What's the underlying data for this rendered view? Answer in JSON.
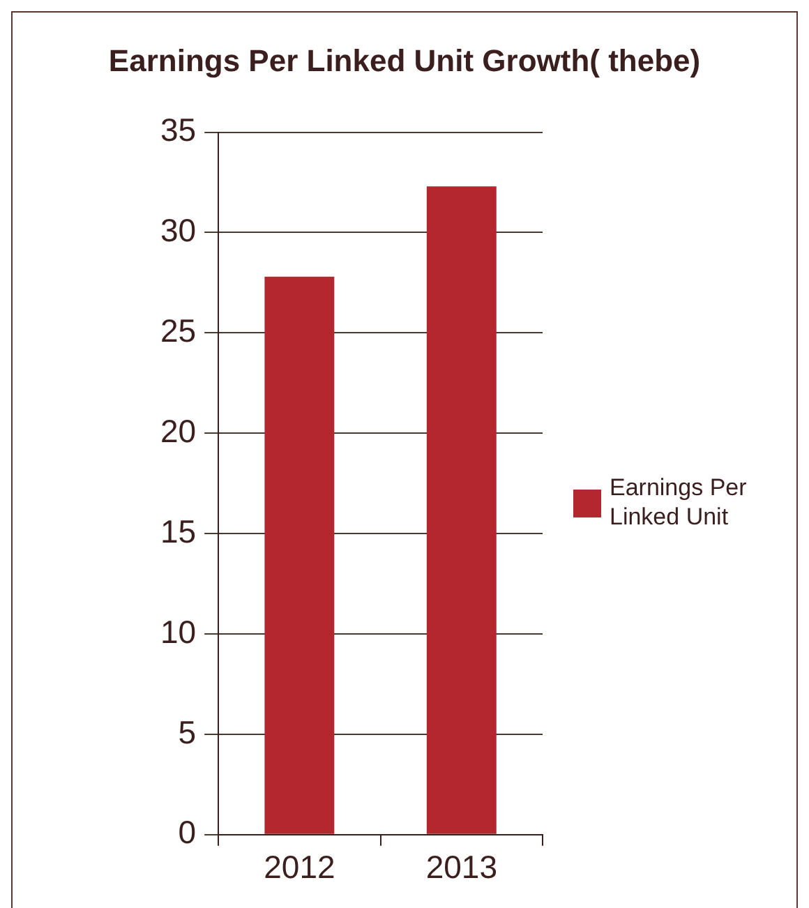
{
  "chart_data": {
    "type": "bar",
    "title": "Earnings Per Linked Unit Growth( thebe)",
    "categories": [
      "2012",
      "2013"
    ],
    "series": [
      {
        "name": "Earnings Per Linked Unit",
        "color": "#b5272f",
        "values": [
          27.8,
          32.3
        ]
      }
    ],
    "ylim": [
      0,
      35
    ],
    "yticks": [
      0,
      5,
      10,
      15,
      20,
      25,
      30,
      35
    ],
    "grid": "y",
    "legend": "right"
  }
}
